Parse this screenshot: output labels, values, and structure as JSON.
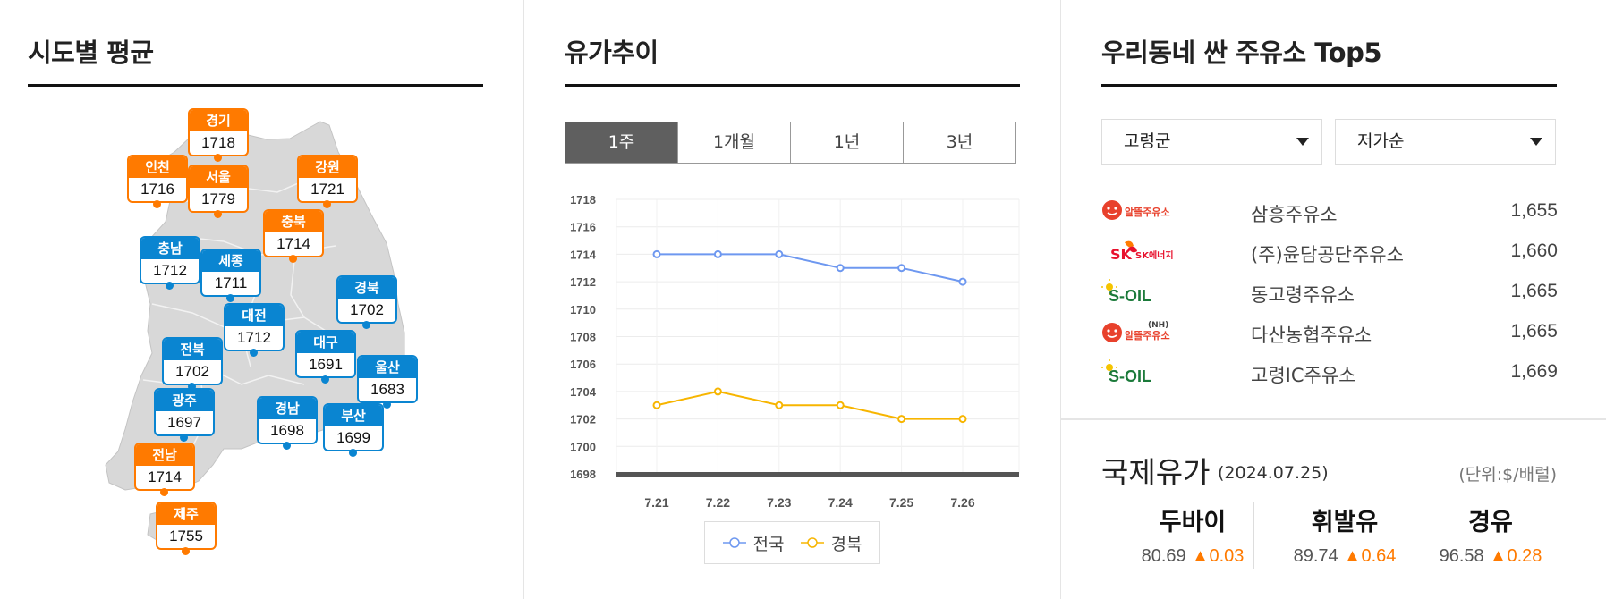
{
  "panel_regional": {
    "title": "시도별 평균",
    "regions": [
      {
        "name": "경기",
        "value": "1718",
        "color": "orange"
      },
      {
        "name": "인천",
        "value": "1716",
        "color": "orange"
      },
      {
        "name": "서울",
        "value": "1779",
        "color": "orange"
      },
      {
        "name": "강원",
        "value": "1721",
        "color": "orange"
      },
      {
        "name": "충북",
        "value": "1714",
        "color": "orange"
      },
      {
        "name": "충남",
        "value": "1712",
        "color": "blue"
      },
      {
        "name": "세종",
        "value": "1711",
        "color": "blue"
      },
      {
        "name": "경북",
        "value": "1702",
        "color": "blue"
      },
      {
        "name": "대전",
        "value": "1712",
        "color": "blue"
      },
      {
        "name": "대구",
        "value": "1691",
        "color": "blue"
      },
      {
        "name": "전북",
        "value": "1702",
        "color": "blue"
      },
      {
        "name": "울산",
        "value": "1683",
        "color": "blue"
      },
      {
        "name": "광주",
        "value": "1697",
        "color": "blue"
      },
      {
        "name": "경남",
        "value": "1698",
        "color": "blue"
      },
      {
        "name": "부산",
        "value": "1699",
        "color": "blue"
      },
      {
        "name": "전남",
        "value": "1714",
        "color": "orange"
      },
      {
        "name": "제주",
        "value": "1755",
        "color": "orange"
      }
    ]
  },
  "panel_trend": {
    "title": "유가추이",
    "tabs": [
      "1주",
      "1개월",
      "1년",
      "3년"
    ],
    "active_tab": "1주"
  },
  "chart_data": {
    "type": "line",
    "x": [
      "7.21",
      "7.22",
      "7.23",
      "7.24",
      "7.25",
      "7.26"
    ],
    "series": [
      {
        "name": "전국",
        "values": [
          1714,
          1714,
          1714,
          1713,
          1713,
          1712
        ],
        "color": "#6e98f0"
      },
      {
        "name": "경북",
        "values": [
          1703,
          1704,
          1703,
          1703,
          1702,
          1702
        ],
        "color": "#f7b500"
      }
    ],
    "ylim": [
      1698,
      1718
    ],
    "yticks": [
      "1718",
      "1716",
      "1714",
      "1712",
      "1710",
      "1708",
      "1706",
      "1704",
      "1702",
      "1700",
      "1698"
    ],
    "grid": true,
    "legend": "bottom"
  },
  "panel_top5": {
    "title": "우리동네 싼 주유소 Top5",
    "region_select": "고령군",
    "sort_select": "저가순",
    "stations": [
      {
        "brand": "알뜰주유소",
        "name": "삼흥주유소",
        "price": "1,655"
      },
      {
        "brand": "SK에너지",
        "name": "(주)윤담공단주유소",
        "price": "1,660"
      },
      {
        "brand": "S-OIL",
        "name": "동고령주유소",
        "price": "1,665"
      },
      {
        "brand": "알뜰주유소",
        "name": "다산농협주유소",
        "price": "1,665"
      },
      {
        "brand": "S-OIL",
        "name": "고령IC주유소",
        "price": "1,669"
      }
    ]
  },
  "international": {
    "title": "국제유가",
    "date": "(2024.07.25)",
    "unit": "(단위:$/배럴)",
    "items": [
      {
        "name": "두바이",
        "value": "80.69",
        "change": "▲0.03"
      },
      {
        "name": "휘발유",
        "value": "89.74",
        "change": "▲0.64"
      },
      {
        "name": "경유",
        "value": "96.58",
        "change": "▲0.28"
      }
    ]
  },
  "colors": {
    "orange": "#ff7a00",
    "blue": "#0a85d1",
    "series1": "#6e98f0",
    "series2": "#f7b500"
  }
}
